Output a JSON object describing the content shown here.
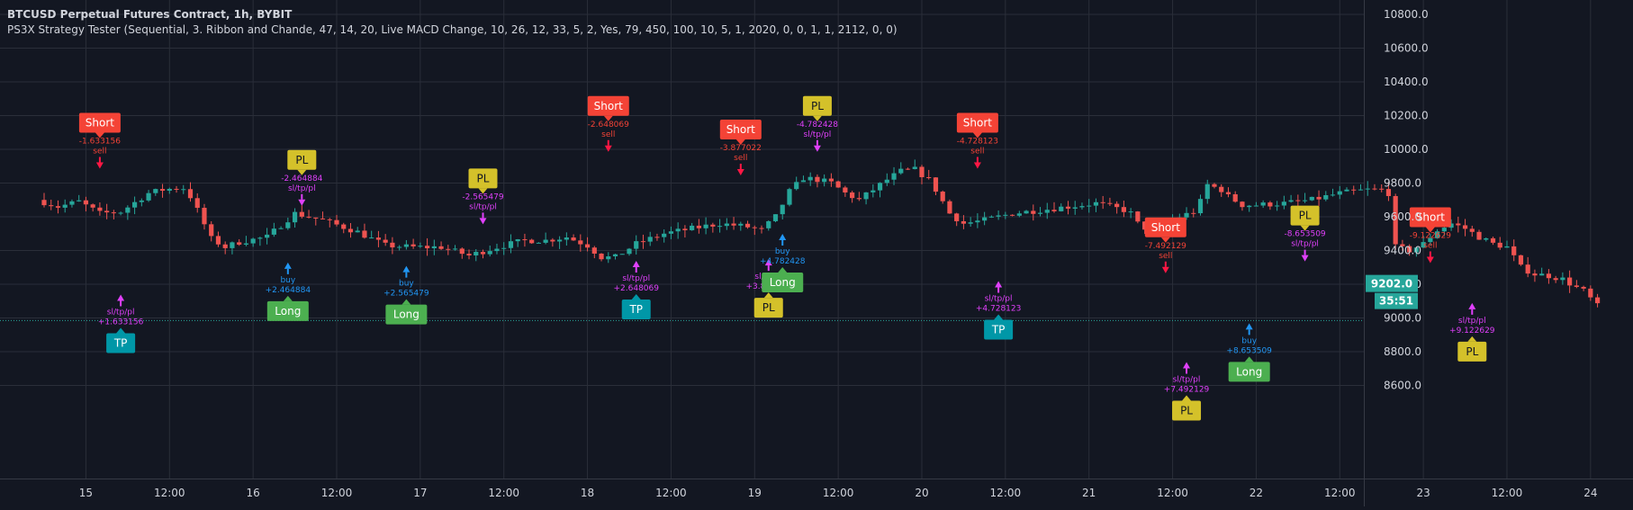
{
  "header": {
    "title": "BTCUSD Perpetual Futures Contract, 1h, BYBIT",
    "study": "PS3X Strategy Tester (Sequential, 3. Ribbon and Chande, 47, 14, 20, Live MACD Change, 10, 26, 12, 33, 5, 2, Yes, 79, 450, 100, 10, 5, 1, 2020, 0, 0, 1, 1, 2112, 0, 0)"
  },
  "colors": {
    "background": "#131722",
    "grid": "#2a2e39",
    "text": "#d1d4dc",
    "up": "#26a69a",
    "down": "#ef5350",
    "buy": "#2196f3",
    "exit": "#e040fb",
    "short_label": "#f44336",
    "long_label": "#4caf50",
    "tp_label": "#0097a7",
    "pl_label": "#d4c12a",
    "dotted_line": "#26a69a"
  },
  "chart_data": {
    "type": "candlestick",
    "x_tick_labels": [
      "15",
      "12:00",
      "16",
      "12:00",
      "17",
      "12:00",
      "18",
      "12:00",
      "19",
      "12:00",
      "20",
      "12:00",
      "21",
      "12:00",
      "22",
      "12:00",
      "23",
      "12:00",
      "24"
    ],
    "y_tick_labels": [
      "10800.0",
      "10600.0",
      "10400.0",
      "10200.0",
      "10000.0",
      "9800.0",
      "9600.0",
      "9400.0",
      "9200.0",
      "9000.0",
      "8800.0",
      "8600.0"
    ],
    "ylim": [
      8460,
      10870
    ],
    "grid": true,
    "last_price_label": "9202.0",
    "countdown_label": "35:51",
    "last_price": 9202,
    "dotted_line_price": 8985,
    "hours": 224,
    "close_path": [
      [
        0,
        9700
      ],
      [
        3,
        9660
      ],
      [
        6,
        9690
      ],
      [
        9,
        9620
      ],
      [
        12,
        9630
      ],
      [
        16,
        9740
      ],
      [
        18,
        9760
      ],
      [
        20,
        9770
      ],
      [
        21,
        9770
      ],
      [
        22,
        9720
      ],
      [
        23,
        9640
      ],
      [
        25,
        9470
      ],
      [
        27,
        9420
      ],
      [
        29,
        9450
      ],
      [
        33,
        9480
      ],
      [
        37,
        9620
      ],
      [
        41,
        9580
      ],
      [
        46,
        9510
      ],
      [
        50,
        9430
      ],
      [
        54,
        9420
      ],
      [
        58,
        9420
      ],
      [
        62,
        9370
      ],
      [
        66,
        9420
      ],
      [
        70,
        9460
      ],
      [
        73,
        9460
      ],
      [
        76,
        9480
      ],
      [
        79,
        9430
      ],
      [
        81,
        9360
      ],
      [
        83,
        9360
      ],
      [
        86,
        9440
      ],
      [
        90,
        9500
      ],
      [
        94,
        9530
      ],
      [
        98,
        9560
      ],
      [
        102,
        9540
      ],
      [
        104,
        9520
      ],
      [
        106,
        9600
      ],
      [
        108,
        9750
      ],
      [
        110,
        9830
      ],
      [
        112,
        9820
      ],
      [
        114,
        9800
      ],
      [
        116,
        9740
      ],
      [
        118,
        9700
      ],
      [
        120,
        9760
      ],
      [
        122,
        9820
      ],
      [
        124,
        9870
      ],
      [
        126,
        9880
      ],
      [
        128,
        9820
      ],
      [
        129,
        9760
      ],
      [
        131,
        9620
      ],
      [
        133,
        9560
      ],
      [
        136,
        9580
      ],
      [
        140,
        9620
      ],
      [
        144,
        9640
      ],
      [
        148,
        9660
      ],
      [
        152,
        9680
      ],
      [
        156,
        9640
      ],
      [
        157,
        9620
      ],
      [
        158,
        9560
      ],
      [
        160,
        9510
      ],
      [
        162,
        9560
      ],
      [
        164,
        9600
      ],
      [
        166,
        9630
      ],
      [
        167,
        9690
      ],
      [
        168,
        9790
      ],
      [
        170,
        9760
      ],
      [
        171,
        9720
      ],
      [
        173,
        9670
      ],
      [
        175,
        9670
      ],
      [
        179,
        9680
      ],
      [
        183,
        9700
      ],
      [
        187,
        9740
      ],
      [
        191,
        9760
      ],
      [
        193,
        9760
      ],
      [
        194,
        9740
      ],
      [
        195,
        9420
      ],
      [
        197,
        9400
      ],
      [
        199,
        9440
      ],
      [
        201,
        9520
      ],
      [
        203,
        9560
      ],
      [
        205,
        9530
      ],
      [
        207,
        9480
      ],
      [
        209,
        9440
      ],
      [
        211,
        9420
      ],
      [
        213,
        9300
      ],
      [
        215,
        9260
      ],
      [
        217,
        9250
      ],
      [
        219,
        9230
      ],
      [
        221,
        9180
      ],
      [
        222,
        9160
      ],
      [
        224,
        9070
      ]
    ]
  },
  "signals": [
    {
      "kind": "short",
      "label": "Short",
      "value": "-1.633156",
      "action": "sell",
      "hour": 8,
      "price": 9800
    },
    {
      "kind": "exit",
      "label": "TP",
      "value": "+1.633156",
      "action": "sl/tp/pl",
      "hour": 11,
      "price": 9160
    },
    {
      "kind": "long",
      "label": "Long",
      "value": "+2.464884",
      "action": "buy",
      "hour": 35,
      "price": 9350
    },
    {
      "kind": "exit",
      "label": "PL",
      "value": "-2.464884",
      "action": "sl/tp/pl",
      "hour": 37,
      "price": 9580
    },
    {
      "kind": "long",
      "label": "Long",
      "value": "+2.565479",
      "action": "buy",
      "hour": 52,
      "price": 9330
    },
    {
      "kind": "exit",
      "label": "PL",
      "value": "-2.565479",
      "action": "sl/tp/pl",
      "hour": 63,
      "price": 9470
    },
    {
      "kind": "short",
      "label": "Short",
      "value": "-2.648069",
      "action": "sell",
      "hour": 81,
      "price": 9900
    },
    {
      "kind": "exit",
      "label": "TP",
      "value": "+2.648069",
      "action": "sl/tp/pl",
      "hour": 85,
      "price": 9360
    },
    {
      "kind": "short",
      "label": "Short",
      "value": "-3.877022",
      "action": "sell",
      "hour": 100,
      "price": 9760
    },
    {
      "kind": "exit",
      "label": "PL",
      "value": "+3.877022",
      "action": "sl/tp/pl",
      "hour": 104,
      "price": 9370
    },
    {
      "kind": "long",
      "label": "Long",
      "value": "+4.782428",
      "action": "buy",
      "hour": 106,
      "price": 9520
    },
    {
      "kind": "exit",
      "label": "PL",
      "value": "-4.782428",
      "action": "sl/tp/pl",
      "hour": 111,
      "price": 9900
    },
    {
      "kind": "short",
      "label": "Short",
      "value": "-4.728123",
      "action": "sell",
      "hour": 134,
      "price": 9800
    },
    {
      "kind": "exit",
      "label": "TP",
      "value": "+4.728123",
      "action": "sl/tp/pl",
      "hour": 137,
      "price": 9240
    },
    {
      "kind": "short",
      "label": "Short",
      "value": "-7.492129",
      "action": "sell",
      "hour": 161,
      "price": 9180
    },
    {
      "kind": "exit",
      "label": "PL",
      "value": "+7.492129",
      "action": "sl/tp/pl",
      "hour": 164,
      "price": 8760
    },
    {
      "kind": "long",
      "label": "Long",
      "value": "+8.653509",
      "action": "buy",
      "hour": 173,
      "price": 8990
    },
    {
      "kind": "exit",
      "label": "PL",
      "value": "-8.653509",
      "action": "sl/tp/pl",
      "hour": 181,
      "price": 9250
    },
    {
      "kind": "short",
      "label": "Short",
      "value": "-9.122629",
      "action": "sell",
      "hour": 199,
      "price": 9240
    },
    {
      "kind": "exit",
      "label": "PL",
      "value": "+9.122629",
      "action": "sl/tp/pl",
      "hour": 205,
      "price": 9110
    }
  ]
}
